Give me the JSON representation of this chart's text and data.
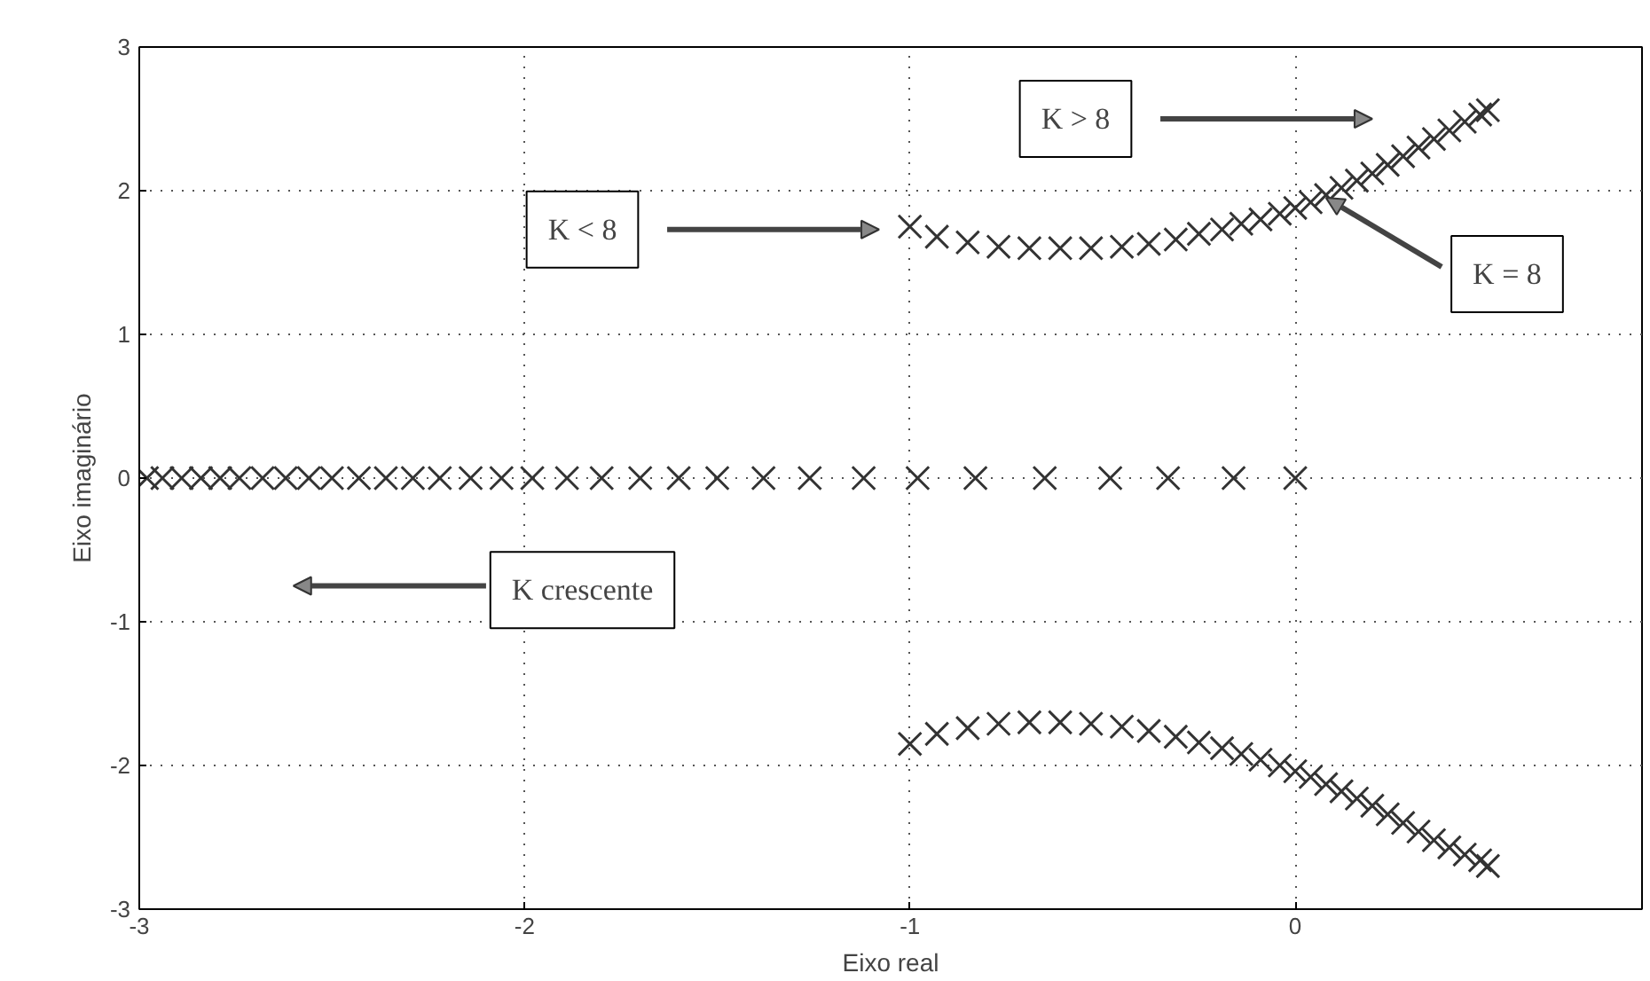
{
  "chart_data": {
    "type": "scatter",
    "xlabel": "Eixo real",
    "ylabel": "Eixo imaginário",
    "xlim": [
      -3,
      0.9
    ],
    "ylim": [
      -3,
      3
    ],
    "xticks": [
      -3,
      -2,
      -1,
      0
    ],
    "yticks": [
      -3,
      -2,
      -1,
      0,
      1,
      2,
      3
    ],
    "grid": true,
    "marker": "cross",
    "series": [
      {
        "color": "#333333",
        "x": [
          0,
          -0.16,
          -0.33,
          -0.48,
          -0.65,
          -0.83,
          -0.98,
          -1.12,
          -1.26,
          -1.38,
          -1.5,
          -1.6,
          -1.7,
          -1.8,
          -1.89,
          -1.98,
          -2.06,
          -2.14,
          -2.22,
          -2.29,
          -2.36,
          -2.43,
          -2.5,
          -2.56,
          -2.62,
          -2.68,
          -2.74,
          -2.79,
          -2.84,
          -2.89,
          -2.94,
          -2.98
        ],
        "values": [
          0,
          0,
          0,
          0,
          0,
          0,
          0,
          0,
          0,
          0,
          0,
          0,
          0,
          0,
          0,
          0,
          0,
          0,
          0,
          0,
          0,
          0,
          0,
          0,
          0,
          0,
          0,
          0,
          0,
          0,
          0,
          0
        ]
      },
      {
        "color": "#333333",
        "x": [
          -1.0,
          -0.93,
          -0.85,
          -0.77,
          -0.69,
          -0.61,
          -0.53,
          -0.45,
          -0.38,
          -0.31,
          -0.25,
          -0.19,
          -0.14,
          -0.09,
          -0.04,
          0,
          0.04,
          0.08,
          0.12,
          0.16,
          0.2,
          0.24,
          0.28,
          0.32,
          0.36,
          0.4,
          0.44,
          0.48,
          0.5
        ],
        "values": [
          1.75,
          1.68,
          1.64,
          1.61,
          1.6,
          1.6,
          1.6,
          1.61,
          1.63,
          1.66,
          1.7,
          1.73,
          1.77,
          1.8,
          1.84,
          1.88,
          1.92,
          1.97,
          2.02,
          2.07,
          2.12,
          2.18,
          2.24,
          2.3,
          2.36,
          2.42,
          2.48,
          2.53,
          2.56
        ]
      },
      {
        "color": "#333333",
        "x": [
          -1.0,
          -0.93,
          -0.85,
          -0.77,
          -0.69,
          -0.61,
          -0.53,
          -0.45,
          -0.38,
          -0.31,
          -0.25,
          -0.19,
          -0.14,
          -0.09,
          -0.04,
          0,
          0.04,
          0.08,
          0.12,
          0.16,
          0.2,
          0.24,
          0.28,
          0.32,
          0.36,
          0.4,
          0.44,
          0.48,
          0.5
        ],
        "values": [
          -1.85,
          -1.78,
          -1.74,
          -1.71,
          -1.7,
          -1.7,
          -1.71,
          -1.73,
          -1.76,
          -1.8,
          -1.84,
          -1.88,
          -1.92,
          -1.96,
          -2.0,
          -2.04,
          -2.08,
          -2.13,
          -2.18,
          -2.23,
          -2.28,
          -2.34,
          -2.4,
          -2.46,
          -2.52,
          -2.57,
          -2.62,
          -2.66,
          -2.7
        ]
      }
    ],
    "annotations": [
      "K > 8",
      "K < 8",
      {
        "text": "K = 8",
        "x": 0.08,
        "y": 1.95
      },
      "K crescente"
    ]
  }
}
